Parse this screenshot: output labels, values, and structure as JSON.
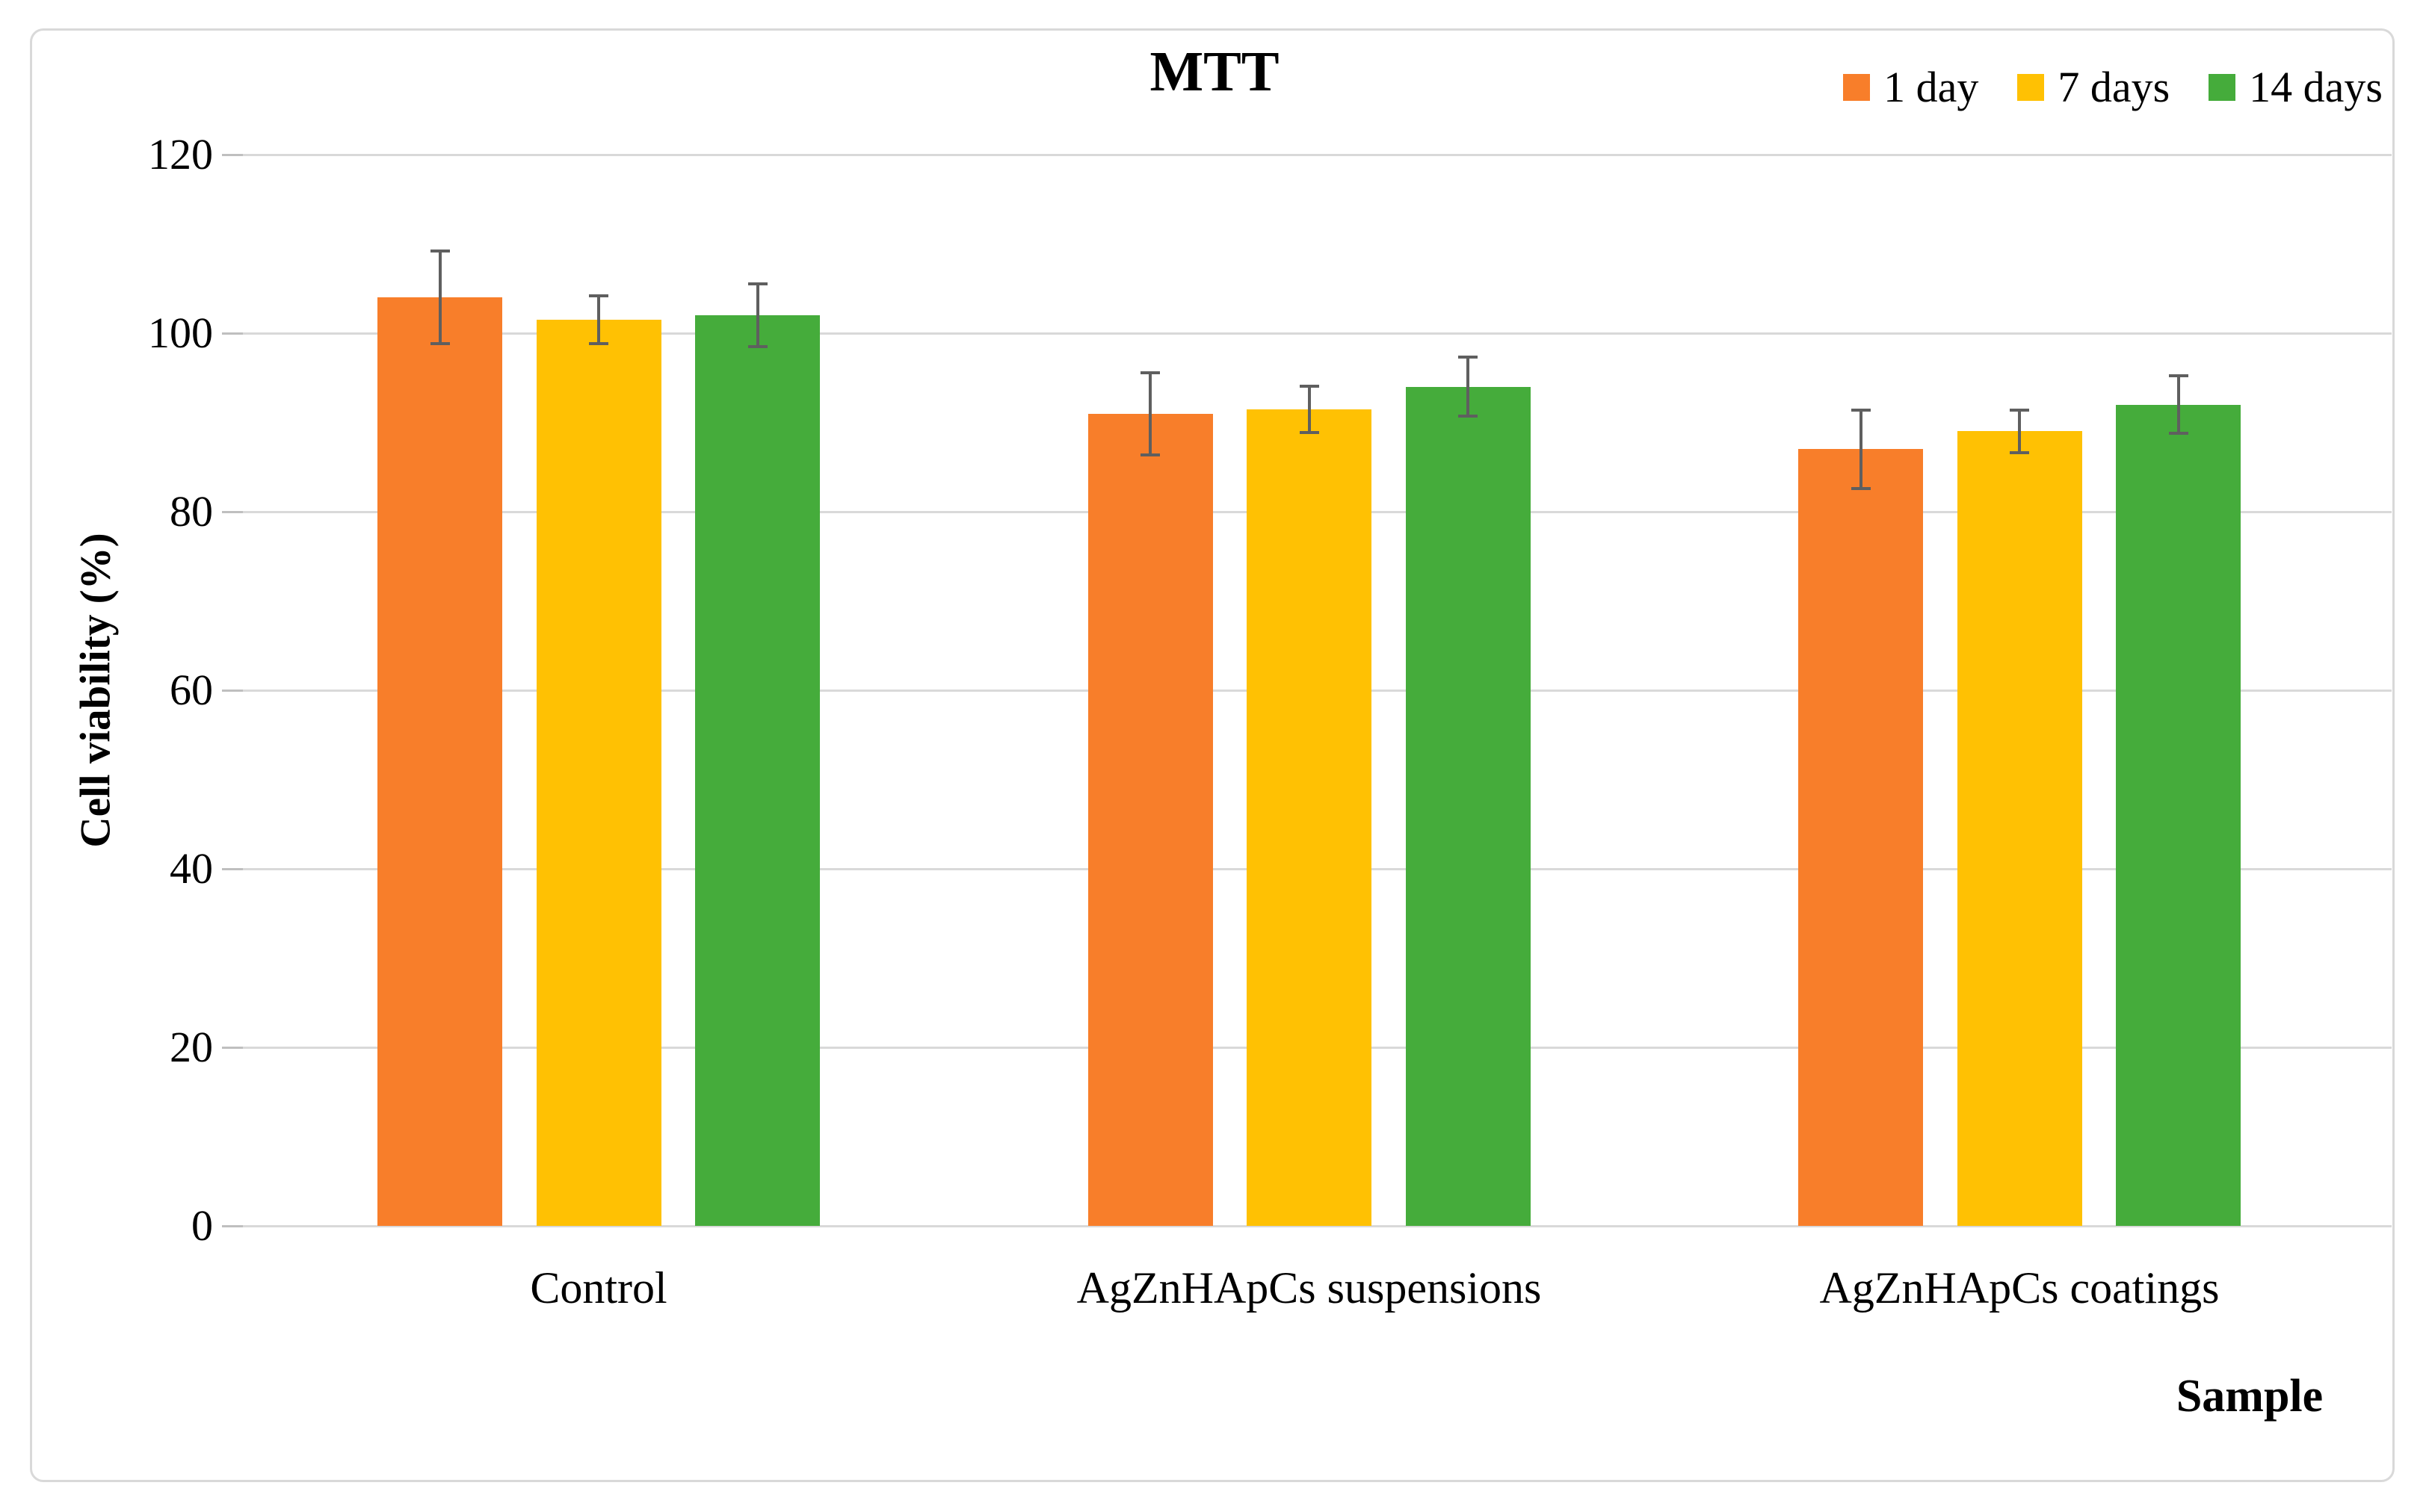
{
  "title": "MTT",
  "axes": {
    "y_title": "Cell viability (%)",
    "x_title": "Sample"
  },
  "chart_data": {
    "type": "bar",
    "title": "MTT",
    "xlabel": "Sample",
    "ylabel": "Cell viability (%)",
    "categories": [
      "Control",
      "AgZnHApCs suspensions",
      "AgZnHApCs coatings"
    ],
    "series": [
      {
        "name": "1 day",
        "color": "#F87E2A",
        "values": [
          104,
          91,
          87
        ],
        "errors": [
          5.2,
          4.6,
          4.4
        ]
      },
      {
        "name": "7 days",
        "color": "#FFC103",
        "values": [
          101.5,
          91.5,
          89
        ],
        "errors": [
          2.7,
          2.6,
          2.4
        ]
      },
      {
        "name": "14 days",
        "color": "#45AC3B",
        "values": [
          102,
          94,
          92
        ],
        "errors": [
          3.5,
          3.3,
          3.2
        ]
      }
    ],
    "ylim": [
      0,
      120
    ],
    "yticks": [
      0,
      20,
      40,
      60,
      80,
      100,
      120
    ],
    "grid": true,
    "error_bars": true,
    "legend_position": "top-right"
  },
  "colors": {
    "bar_1_day": "#F87E2A",
    "bar_7_days": "#FFC103",
    "bar_14_days": "#45AC3B",
    "gridline": "#D9D9D9",
    "tick_mark": "#BFBFBF",
    "error_bar": "#5F5F5F",
    "frame_border": "#D9D9D9",
    "text": "#000000",
    "background": "#FFFFFF"
  }
}
